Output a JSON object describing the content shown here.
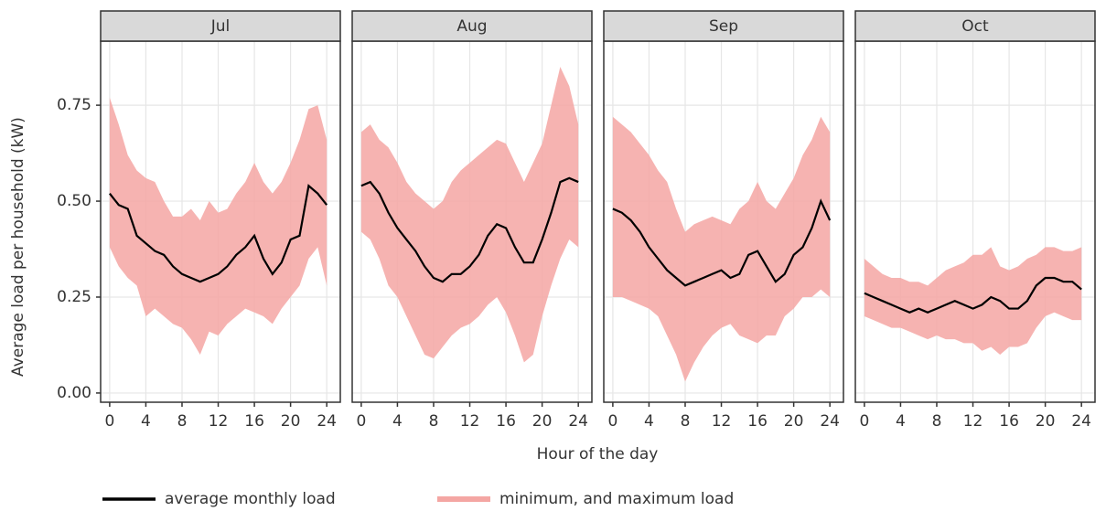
{
  "chart_data": {
    "type": "line",
    "x_label": "Hour of the day",
    "y_label": "Average load per household (kW)",
    "xlim": [
      -1,
      25.5
    ],
    "xticks": [
      0,
      4,
      8,
      12,
      16,
      20,
      24
    ],
    "ylim": [
      -0.024,
      0.917
    ],
    "yticks": [
      {
        "value": 0,
        "label": "0.00"
      },
      {
        "value": 0.25,
        "label": "0.25"
      },
      {
        "value": 0.5,
        "label": "0.50"
      },
      {
        "value": 0.75,
        "label": "0.75"
      }
    ],
    "grid": true,
    "x": [
      0,
      1,
      2,
      3,
      4,
      5,
      6,
      7,
      8,
      9,
      10,
      11,
      12,
      13,
      14,
      15,
      16,
      17,
      18,
      19,
      20,
      21,
      22,
      23,
      24
    ],
    "series": [
      {
        "name": "average monthly load",
        "color": "#000000"
      },
      {
        "name": "minimum, and maximum load",
        "color": "#f4a6a3"
      }
    ],
    "panels": [
      {
        "title": "Jul",
        "average": [
          0.52,
          0.49,
          0.48,
          0.41,
          0.39,
          0.37,
          0.36,
          0.33,
          0.31,
          0.3,
          0.29,
          0.3,
          0.31,
          0.33,
          0.36,
          0.38,
          0.41,
          0.35,
          0.31,
          0.34,
          0.4,
          0.41,
          0.54,
          0.52,
          0.49
        ],
        "minimum": [
          0.38,
          0.33,
          0.3,
          0.28,
          0.2,
          0.22,
          0.2,
          0.18,
          0.17,
          0.14,
          0.1,
          0.16,
          0.15,
          0.18,
          0.2,
          0.22,
          0.21,
          0.2,
          0.18,
          0.22,
          0.25,
          0.28,
          0.35,
          0.38,
          0.28
        ],
        "maximum": [
          0.77,
          0.7,
          0.62,
          0.58,
          0.56,
          0.55,
          0.5,
          0.46,
          0.46,
          0.48,
          0.45,
          0.5,
          0.47,
          0.48,
          0.52,
          0.55,
          0.6,
          0.55,
          0.52,
          0.55,
          0.6,
          0.66,
          0.74,
          0.75,
          0.66
        ]
      },
      {
        "title": "Aug",
        "average": [
          0.54,
          0.55,
          0.52,
          0.47,
          0.43,
          0.4,
          0.37,
          0.33,
          0.3,
          0.29,
          0.31,
          0.31,
          0.33,
          0.36,
          0.41,
          0.44,
          0.43,
          0.38,
          0.34,
          0.34,
          0.4,
          0.47,
          0.55,
          0.56,
          0.55
        ],
        "minimum": [
          0.42,
          0.4,
          0.35,
          0.28,
          0.25,
          0.2,
          0.15,
          0.1,
          0.09,
          0.12,
          0.15,
          0.17,
          0.18,
          0.2,
          0.23,
          0.25,
          0.21,
          0.15,
          0.08,
          0.1,
          0.2,
          0.28,
          0.35,
          0.4,
          0.38
        ],
        "maximum": [
          0.68,
          0.7,
          0.66,
          0.64,
          0.6,
          0.55,
          0.52,
          0.5,
          0.48,
          0.5,
          0.55,
          0.58,
          0.6,
          0.62,
          0.64,
          0.66,
          0.65,
          0.6,
          0.55,
          0.6,
          0.65,
          0.75,
          0.85,
          0.8,
          0.7
        ]
      },
      {
        "title": "Sep",
        "average": [
          0.48,
          0.47,
          0.45,
          0.42,
          0.38,
          0.35,
          0.32,
          0.3,
          0.28,
          0.29,
          0.3,
          0.31,
          0.32,
          0.3,
          0.31,
          0.36,
          0.37,
          0.33,
          0.29,
          0.31,
          0.36,
          0.38,
          0.43,
          0.5,
          0.45
        ],
        "minimum": [
          0.25,
          0.25,
          0.24,
          0.23,
          0.22,
          0.2,
          0.15,
          0.1,
          0.03,
          0.08,
          0.12,
          0.15,
          0.17,
          0.18,
          0.15,
          0.14,
          0.13,
          0.15,
          0.15,
          0.2,
          0.22,
          0.25,
          0.25,
          0.27,
          0.25
        ],
        "maximum": [
          0.72,
          0.7,
          0.68,
          0.65,
          0.62,
          0.58,
          0.55,
          0.48,
          0.42,
          0.44,
          0.45,
          0.46,
          0.45,
          0.44,
          0.48,
          0.5,
          0.55,
          0.5,
          0.48,
          0.52,
          0.56,
          0.62,
          0.66,
          0.72,
          0.68
        ]
      },
      {
        "title": "Oct",
        "average": [
          0.26,
          0.25,
          0.24,
          0.23,
          0.22,
          0.21,
          0.22,
          0.21,
          0.22,
          0.23,
          0.24,
          0.23,
          0.22,
          0.23,
          0.25,
          0.24,
          0.22,
          0.22,
          0.24,
          0.28,
          0.3,
          0.3,
          0.29,
          0.29,
          0.27
        ],
        "minimum": [
          0.2,
          0.19,
          0.18,
          0.17,
          0.17,
          0.16,
          0.15,
          0.14,
          0.15,
          0.14,
          0.14,
          0.13,
          0.13,
          0.11,
          0.12,
          0.1,
          0.12,
          0.12,
          0.13,
          0.17,
          0.2,
          0.21,
          0.2,
          0.19,
          0.19
        ],
        "maximum": [
          0.35,
          0.33,
          0.31,
          0.3,
          0.3,
          0.29,
          0.29,
          0.28,
          0.3,
          0.32,
          0.33,
          0.34,
          0.36,
          0.36,
          0.38,
          0.33,
          0.32,
          0.33,
          0.35,
          0.36,
          0.38,
          0.38,
          0.37,
          0.37,
          0.38
        ]
      }
    ]
  }
}
